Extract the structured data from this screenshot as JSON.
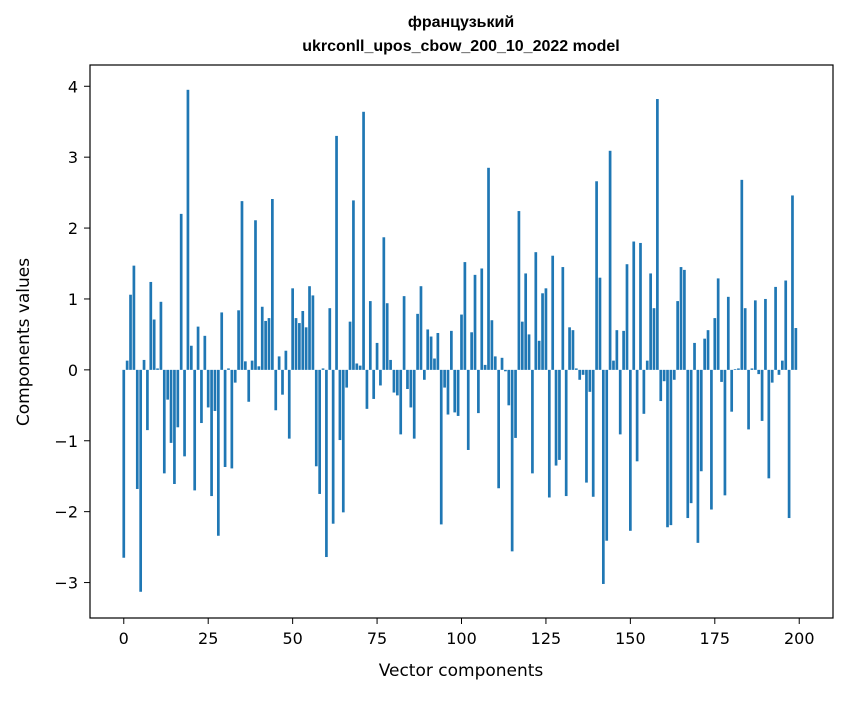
{
  "chart_data": {
    "type": "bar",
    "title": "французький",
    "subtitle": "ukrconll_upos_cbow_200_10_2022 model",
    "xlabel": "Vector components",
    "ylabel": "Components values",
    "xlim": [
      -10,
      210
    ],
    "ylim": [
      -3.5,
      4.3
    ],
    "x_ticks": [
      0,
      25,
      50,
      75,
      100,
      125,
      150,
      175,
      200
    ],
    "y_ticks": [
      -3,
      -2,
      -1,
      0,
      1,
      2,
      3,
      4
    ],
    "x_tick_labels": [
      "0",
      "25",
      "50",
      "75",
      "100",
      "125",
      "150",
      "175",
      "200"
    ],
    "y_tick_labels": [
      "−3",
      "−2",
      "−1",
      "0",
      "1",
      "2",
      "3",
      "4"
    ],
    "grid": false,
    "bar_color": "#1f77b4",
    "x": [
      0,
      1,
      2,
      3,
      4,
      5,
      6,
      7,
      8,
      9,
      10,
      11,
      12,
      13,
      14,
      15,
      16,
      17,
      18,
      19,
      20,
      21,
      22,
      23,
      24,
      25,
      26,
      27,
      28,
      29,
      30,
      31,
      32,
      33,
      34,
      35,
      36,
      37,
      38,
      39,
      40,
      41,
      42,
      43,
      44,
      45,
      46,
      47,
      48,
      49,
      50,
      51,
      52,
      53,
      54,
      55,
      56,
      57,
      58,
      59,
      60,
      61,
      62,
      63,
      64,
      65,
      66,
      67,
      68,
      69,
      70,
      71,
      72,
      73,
      74,
      75,
      76,
      77,
      78,
      79,
      80,
      81,
      82,
      83,
      84,
      85,
      86,
      87,
      88,
      89,
      90,
      91,
      92,
      93,
      94,
      95,
      96,
      97,
      98,
      99,
      100,
      101,
      102,
      103,
      104,
      105,
      106,
      107,
      108,
      109,
      110,
      111,
      112,
      113,
      114,
      115,
      116,
      117,
      118,
      119,
      120,
      121,
      122,
      123,
      124,
      125,
      126,
      127,
      128,
      129,
      130,
      131,
      132,
      133,
      134,
      135,
      136,
      137,
      138,
      139,
      140,
      141,
      142,
      143,
      144,
      145,
      146,
      147,
      148,
      149,
      150,
      151,
      152,
      153,
      154,
      155,
      156,
      157,
      158,
      159,
      160,
      161,
      162,
      163,
      164,
      165,
      166,
      167,
      168,
      169,
      170,
      171,
      172,
      173,
      174,
      175,
      176,
      177,
      178,
      179,
      180,
      181,
      182,
      183,
      184,
      185,
      186,
      187,
      188,
      189,
      190,
      191,
      192,
      193,
      194,
      195,
      196,
      197,
      198,
      199
    ],
    "values": [
      -2.65,
      0.13,
      1.06,
      1.47,
      -1.68,
      -3.13,
      0.14,
      -0.85,
      1.24,
      0.71,
      0.02,
      0.96,
      -1.46,
      -0.42,
      -1.03,
      -1.61,
      -0.81,
      2.2,
      -1.22,
      3.95,
      0.34,
      -1.7,
      0.61,
      -0.75,
      0.48,
      -0.53,
      -1.78,
      -0.58,
      -2.34,
      0.81,
      -1.37,
      0.02,
      -1.39,
      -0.18,
      0.84,
      2.38,
      0.12,
      -0.45,
      0.13,
      2.11,
      0.05,
      0.89,
      0.69,
      0.73,
      2.41,
      -0.57,
      0.19,
      -0.35,
      0.27,
      -0.97,
      1.15,
      0.73,
      0.66,
      0.83,
      0.6,
      1.18,
      1.05,
      -1.36,
      -1.75,
      0.02,
      -2.64,
      0.87,
      -2.17,
      3.3,
      -0.99,
      -2.01,
      -0.25,
      0.68,
      2.39,
      0.09,
      0.06,
      3.64,
      -0.55,
      0.97,
      -0.41,
      0.38,
      -0.22,
      1.87,
      0.94,
      0.14,
      -0.32,
      -0.36,
      -0.91,
      1.04,
      -0.27,
      -0.53,
      -0.97,
      0.79,
      1.18,
      -0.14,
      0.57,
      0.47,
      0.16,
      0.52,
      -2.18,
      -0.25,
      -0.63,
      0.55,
      -0.6,
      -0.65,
      0.78,
      1.52,
      -1.13,
      0.53,
      1.34,
      -0.61,
      1.43,
      0.07,
      2.85,
      0.7,
      0.19,
      -1.67,
      0.17,
      -0.02,
      -0.5,
      -2.56,
      -0.96,
      2.24,
      0.68,
      1.36,
      0.5,
      -1.46,
      1.66,
      0.41,
      1.08,
      1.15,
      -1.8,
      1.61,
      -1.35,
      -1.27,
      1.45,
      -1.78,
      0.6,
      0.56,
      0.02,
      -0.14,
      -0.07,
      -1.59,
      -0.31,
      -1.79,
      2.66,
      1.3,
      -3.02,
      -2.41,
      3.09,
      0.13,
      0.56,
      -0.91,
      0.55,
      1.49,
      -2.27,
      1.81,
      -1.29,
      1.79,
      -0.62,
      0.13,
      1.36,
      0.87,
      3.82,
      -0.44,
      -0.16,
      -2.22,
      -2.19,
      -0.14,
      0.97,
      1.45,
      1.41,
      -2.09,
      -1.88,
      0.38,
      -2.44,
      -1.43,
      0.44,
      0.56,
      -1.97,
      0.73,
      1.29,
      -0.17,
      -1.77,
      1.03,
      -0.59,
      0.01,
      0.02,
      2.68,
      0.87,
      -0.84,
      0.02,
      0.98,
      -0.06,
      -0.72,
      1.0,
      -1.53,
      -0.18,
      1.17,
      -0.07,
      0.13,
      1.26,
      -2.09,
      2.46,
      0.59
    ]
  }
}
